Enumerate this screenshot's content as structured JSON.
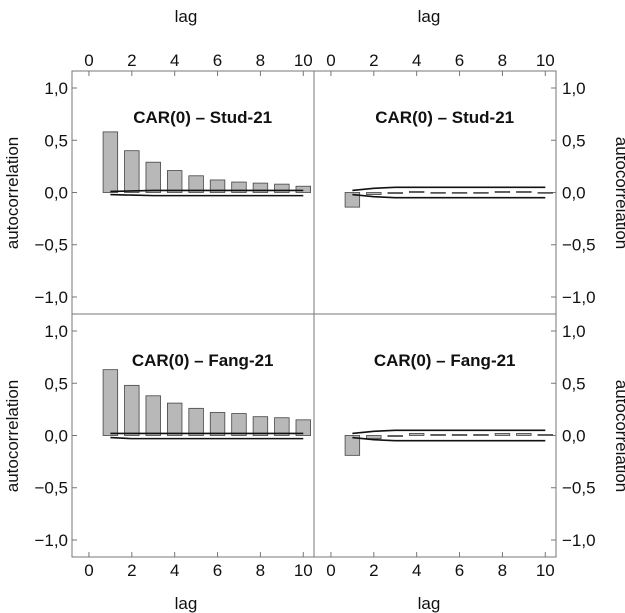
{
  "chart_data": {
    "type": "bar",
    "layout": "2x2 panel grid",
    "xlabel": "lag",
    "ylabel": "autocorrelation",
    "xlim": [
      0,
      10.5
    ],
    "ylim": [
      -1.0,
      1.0
    ],
    "x_ticks": [
      "0",
      "2",
      "4",
      "6",
      "8",
      "10"
    ],
    "y_ticks": [
      "−1,0",
      "−0,5",
      "0,0",
      "0,5",
      "1,0"
    ],
    "y_tick_values": [
      -1.0,
      -0.5,
      0.0,
      0.5,
      1.0
    ],
    "panels": [
      {
        "title": "CAR(0) – Stud-21",
        "lags": [
          1,
          2,
          3,
          4,
          5,
          6,
          7,
          8,
          9,
          10
        ],
        "values": [
          0.58,
          0.4,
          0.29,
          0.21,
          0.16,
          0.12,
          0.1,
          0.09,
          0.08,
          0.06
        ],
        "band_upper": [
          0.01,
          0.015,
          0.02,
          0.02,
          0.02,
          0.02,
          0.02,
          0.02,
          0.02,
          0.02
        ],
        "band_lower": [
          -0.02,
          -0.025,
          -0.03,
          -0.03,
          -0.03,
          -0.03,
          -0.03,
          -0.03,
          -0.03,
          -0.03
        ]
      },
      {
        "title": "CAR(0) – Stud-21",
        "lags": [
          1,
          2,
          3,
          4,
          5,
          6,
          7,
          8,
          9,
          10
        ],
        "values": [
          -0.14,
          -0.02,
          -0.01,
          0.01,
          0.0,
          0.0,
          0.0,
          0.01,
          0.01,
          0.0
        ],
        "band_upper": [
          0.02,
          0.04,
          0.05,
          0.05,
          0.05,
          0.05,
          0.05,
          0.05,
          0.05,
          0.05
        ],
        "band_lower": [
          -0.02,
          -0.04,
          -0.05,
          -0.05,
          -0.05,
          -0.05,
          -0.05,
          -0.05,
          -0.05,
          -0.05
        ]
      },
      {
        "title": "CAR(0) – Fang-21",
        "lags": [
          1,
          2,
          3,
          4,
          5,
          6,
          7,
          8,
          9,
          10
        ],
        "values": [
          0.63,
          0.48,
          0.38,
          0.31,
          0.26,
          0.22,
          0.21,
          0.18,
          0.17,
          0.15
        ],
        "band_upper": [
          0.02,
          0.02,
          0.02,
          0.02,
          0.02,
          0.02,
          0.02,
          0.02,
          0.02,
          0.02
        ],
        "band_lower": [
          -0.02,
          -0.03,
          -0.03,
          -0.03,
          -0.03,
          -0.03,
          -0.03,
          -0.03,
          -0.03,
          -0.03
        ]
      },
      {
        "title": "CAR(0) – Fang-21",
        "lags": [
          1,
          2,
          3,
          4,
          5,
          6,
          7,
          8,
          9,
          10
        ],
        "values": [
          -0.19,
          -0.03,
          -0.01,
          0.02,
          0.01,
          0.01,
          0.01,
          0.02,
          0.02,
          0.01
        ],
        "band_upper": [
          0.02,
          0.04,
          0.05,
          0.05,
          0.05,
          0.05,
          0.05,
          0.05,
          0.05,
          0.05
        ],
        "band_lower": [
          -0.02,
          -0.04,
          -0.05,
          -0.05,
          -0.05,
          -0.05,
          -0.05,
          -0.05,
          -0.05,
          -0.05
        ]
      }
    ]
  }
}
